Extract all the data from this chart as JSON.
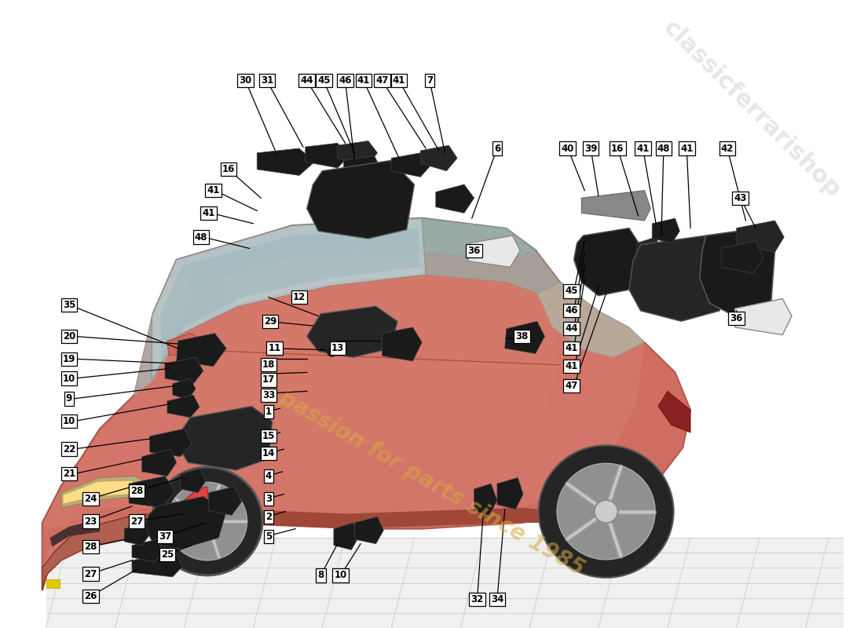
{
  "bg_color": "#ffffff",
  "car_body_color": "#D4756A",
  "car_body_dark": "#C05040",
  "car_body_light": "#E09080",
  "hood_color": "#C8B0A8",
  "glass_color": "#B8C8CC",
  "glass_color2": "#A0B8BC",
  "roof_color": "#A0A8AA",
  "wheel_dark": "#3a3a3a",
  "wheel_mid": "#888888",
  "wheel_light": "#aaaaaa",
  "floor_color": "#e8e8e8",
  "floor_line": "#cccccc",
  "ecu_dark": "#1a1a1a",
  "ecu_mid": "#2a2a2a",
  "label_border": "#000000",
  "label_bg": "#ffffff",
  "line_color": "#000000",
  "text_bold_color": "#000000",
  "watermark_color": "#D4A840",
  "site_color": "#d8d8d8",
  "watermark_text": "a passion for parts since 1985",
  "site_text": "classicferrarishop"
}
